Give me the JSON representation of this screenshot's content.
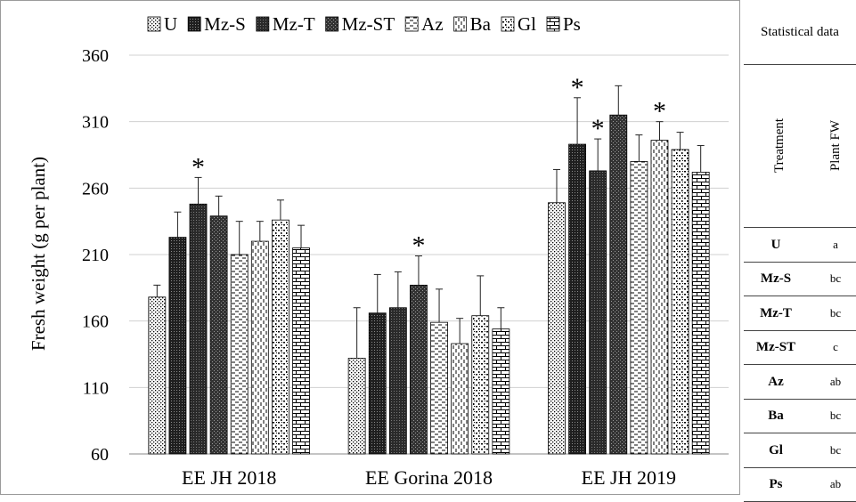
{
  "chart_data": {
    "type": "bar",
    "ylabel": "Fresh weight (g per plant)",
    "xlabel": "",
    "ylim": [
      60,
      360
    ],
    "yticks": [
      60,
      110,
      160,
      210,
      260,
      310,
      360
    ],
    "grid": true,
    "legend_position": "top",
    "categories": [
      "EE JH 2018",
      "EE Gorina 2018",
      "EE JH 2019"
    ],
    "series": [
      {
        "name": "U",
        "values": [
          178,
          132,
          249
        ],
        "errors": [
          9,
          38,
          25
        ],
        "significant": [
          false,
          false,
          false
        ]
      },
      {
        "name": "Mz-S",
        "values": [
          223,
          166,
          293
        ],
        "errors": [
          19,
          29,
          35
        ],
        "significant": [
          false,
          false,
          true
        ]
      },
      {
        "name": "Mz-T",
        "values": [
          248,
          170,
          273
        ],
        "errors": [
          20,
          27,
          24
        ],
        "significant": [
          true,
          false,
          true
        ]
      },
      {
        "name": "Mz-ST",
        "values": [
          239,
          187,
          315
        ],
        "errors": [
          15,
          22,
          22
        ],
        "significant": [
          false,
          true,
          false
        ]
      },
      {
        "name": "Az",
        "values": [
          210,
          159,
          280
        ],
        "errors": [
          25,
          25,
          20
        ],
        "significant": [
          false,
          false,
          false
        ]
      },
      {
        "name": "Ba",
        "values": [
          220,
          143,
          296
        ],
        "errors": [
          15,
          19,
          14
        ],
        "significant": [
          false,
          false,
          true
        ]
      },
      {
        "name": "Gl",
        "values": [
          236,
          164,
          289
        ],
        "errors": [
          15,
          30,
          13
        ],
        "significant": [
          false,
          false,
          false
        ]
      },
      {
        "name": "Ps",
        "values": [
          215,
          154,
          272
        ],
        "errors": [
          17,
          16,
          20
        ],
        "significant": [
          false,
          false,
          false
        ]
      }
    ],
    "significance_marker": "*"
  },
  "stats_table": {
    "title": "Statistical data",
    "col_treatment": "Treatment",
    "col_value": "Plant FW",
    "rows": [
      {
        "treatment": "U",
        "value": "a"
      },
      {
        "treatment": "Mz-S",
        "value": "bc"
      },
      {
        "treatment": "Mz-T",
        "value": "bc"
      },
      {
        "treatment": "Mz-ST",
        "value": "c"
      },
      {
        "treatment": "Az",
        "value": "ab"
      },
      {
        "treatment": "Ba",
        "value": "bc"
      },
      {
        "treatment": "Gl",
        "value": "bc"
      },
      {
        "treatment": "Ps",
        "value": "ab"
      }
    ]
  },
  "colors": {
    "dark_fill": "#2b2b2b",
    "light_fill": "#ffffff",
    "grid": "#d0d0d0",
    "border": "#444444"
  }
}
